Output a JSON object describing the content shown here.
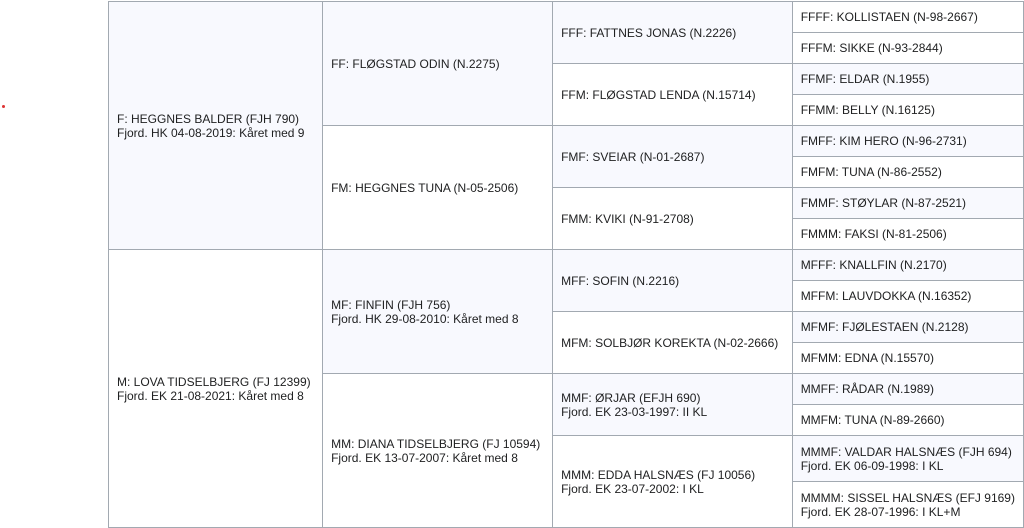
{
  "pedigree": [
    {
      "code": "F",
      "name": "F: HEGGNES BALDER (FJH 790)",
      "detail": "Fjord. HK 04-08-2019: Kåret med 9"
    },
    {
      "code": "FF",
      "name": "FF: FLØGSTAD ODIN (N.2275)",
      "detail": ""
    },
    {
      "code": "FFF",
      "name": "FFF: FATTNES JONAS (N.2226)",
      "detail": ""
    },
    {
      "code": "FFFF",
      "name": "FFFF: KOLLISTAEN (N-98-2667)",
      "detail": ""
    },
    {
      "code": "FFFM",
      "name": "FFFM: SIKKE (N-93-2844)",
      "detail": ""
    },
    {
      "code": "FFM",
      "name": "FFM: FLØGSTAD LENDA (N.15714)",
      "detail": ""
    },
    {
      "code": "FFMF",
      "name": "FFMF: ELDAR (N.1955)",
      "detail": ""
    },
    {
      "code": "FFMM",
      "name": "FFMM: BELLY (N.16125)",
      "detail": ""
    },
    {
      "code": "FM",
      "name": "FM: HEGGNES TUNA (N-05-2506)",
      "detail": ""
    },
    {
      "code": "FMF",
      "name": "FMF: SVEIAR (N-01-2687)",
      "detail": ""
    },
    {
      "code": "FMFF",
      "name": "FMFF: KIM HERO (N-96-2731)",
      "detail": ""
    },
    {
      "code": "FMFM",
      "name": "FMFM: TUNA (N-86-2552)",
      "detail": ""
    },
    {
      "code": "FMM",
      "name": "FMM: KVIKI (N-91-2708)",
      "detail": ""
    },
    {
      "code": "FMMF",
      "name": "FMMF: STØYLAR (N-87-2521)",
      "detail": ""
    },
    {
      "code": "FMMM",
      "name": "FMMM: FAKSI (N-81-2506)",
      "detail": ""
    },
    {
      "code": "M",
      "name": "M: LOVA TIDSELBJERG (FJ 12399)",
      "detail": "Fjord. EK 21-08-2021: Kåret med 8"
    },
    {
      "code": "MF",
      "name": "MF: FINFIN (FJH 756)",
      "detail": "Fjord. HK 29-08-2010: Kåret med 8"
    },
    {
      "code": "MFF",
      "name": "MFF: SOFIN (N.2216)",
      "detail": ""
    },
    {
      "code": "MFFF",
      "name": "MFFF: KNALLFIN (N.2170)",
      "detail": ""
    },
    {
      "code": "MFFM",
      "name": "MFFM: LAUVDOKKA (N.16352)",
      "detail": ""
    },
    {
      "code": "MFM",
      "name": "MFM: SOLBJØR KOREKTA (N-02-2666)",
      "detail": ""
    },
    {
      "code": "MFMF",
      "name": "MFMF: FJØLESTAEN (N.2128)",
      "detail": ""
    },
    {
      "code": "MFMM",
      "name": "MFMM: EDNA (N.15570)",
      "detail": ""
    },
    {
      "code": "MM",
      "name": "MM: DIANA TIDSELBJERG (FJ 10594)",
      "detail": "Fjord. EK 13-07-2007: Kåret med 8"
    },
    {
      "code": "MMF",
      "name": "MMF: ØRJAR (EFJH 690)",
      "detail": "Fjord. EK 23-03-1997: II KL"
    },
    {
      "code": "MMFF",
      "name": "MMFF: RÅDAR (N.1989)",
      "detail": ""
    },
    {
      "code": "MMFM",
      "name": "MMFM: TUNA (N-89-2660)",
      "detail": ""
    },
    {
      "code": "MMM",
      "name": "MMM: EDDA HALSNÆS (FJ 10056)",
      "detail": "Fjord. EK 23-07-2002: I KL"
    },
    {
      "code": "MMMF",
      "name": "MMMF: VALDAR HALSNÆS (FJH 694)",
      "detail": "Fjord. EK 06-09-1998: I KL"
    },
    {
      "code": "MMMM",
      "name": "MMMM: SISSEL HALSNÆS (EFJ 9169)",
      "detail": "Fjord. EK 28-07-1996: I KL+M"
    }
  ],
  "colors": {
    "sire_bg": "#f8f9fe",
    "border": "#a2a9b1",
    "marker": "#dd3333"
  }
}
